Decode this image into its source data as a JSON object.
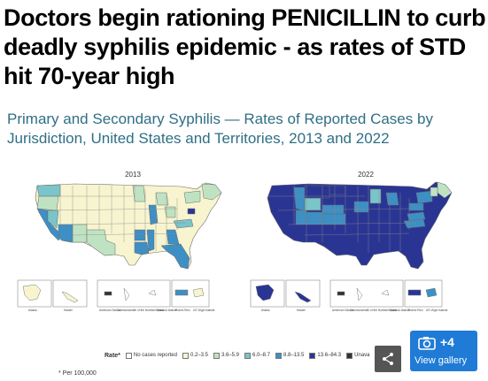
{
  "headline": "Doctors begin rationing PENICILLIN to curb deadly syphilis epidemic - as rates of STD hit 70-year high",
  "figure": {
    "title_line1": "Primary and Secondary Syphilis — Rates of Reported Cases by",
    "title_line2": "Jurisdiction, United States and Territories, 2013 and 2022",
    "maps": [
      {
        "year": "2013"
      },
      {
        "year": "2022"
      }
    ],
    "territory_labels": [
      "Alaska",
      "Hawaii",
      "American Samoa",
      "Commonwealth of the Northern Mariana Islands",
      "Guam",
      "Puerto Rico",
      "US Virgin Islands"
    ],
    "legend": {
      "title": "Rate*",
      "items": [
        {
          "label": "No cases reported",
          "color": "#ffffff"
        },
        {
          "label": "0.2–3.5",
          "color": "#f7f4cf"
        },
        {
          "label": "3.6–5.9",
          "color": "#bfe3c2"
        },
        {
          "label": "6.0–8.7",
          "color": "#79c5c9"
        },
        {
          "label": "8.8–13.5",
          "color": "#3d8fc4"
        },
        {
          "label": "13.6–84.3",
          "color": "#2a3593"
        },
        {
          "label": "Unava",
          "color": "#333333"
        }
      ]
    },
    "footnote": "* Per 100,000"
  },
  "gallery": {
    "count": "+4",
    "label": "View gallery"
  },
  "icons": {
    "share": "share-icon",
    "camera": "camera-icon"
  }
}
